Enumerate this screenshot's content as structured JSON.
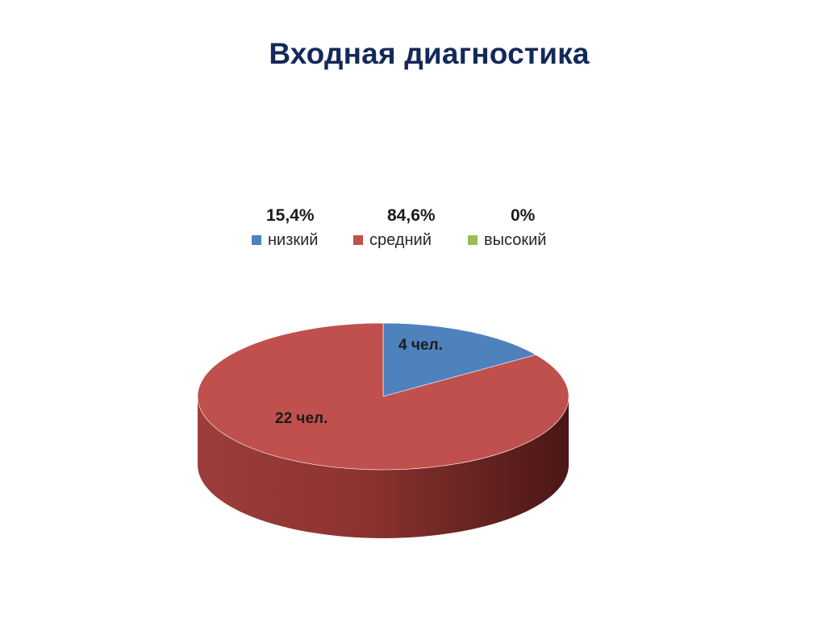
{
  "slide": {
    "title": "Входная диагностика"
  },
  "colors": {
    "low": "#4f81bd",
    "medium": "#c0504d",
    "high": "#9bbb59",
    "title": "#14295a"
  },
  "chart_data": {
    "type": "pie",
    "title": "",
    "legend_position": "top",
    "series": [
      {
        "name": "низкий",
        "value": 4,
        "percent_label": "15,4%",
        "data_label": "4 чел."
      },
      {
        "name": "средний",
        "value": 22,
        "percent_label": "84,6%",
        "data_label": "22 чел."
      },
      {
        "name": "высокий",
        "value": 0,
        "percent_label": "0%",
        "data_label": ""
      }
    ]
  }
}
